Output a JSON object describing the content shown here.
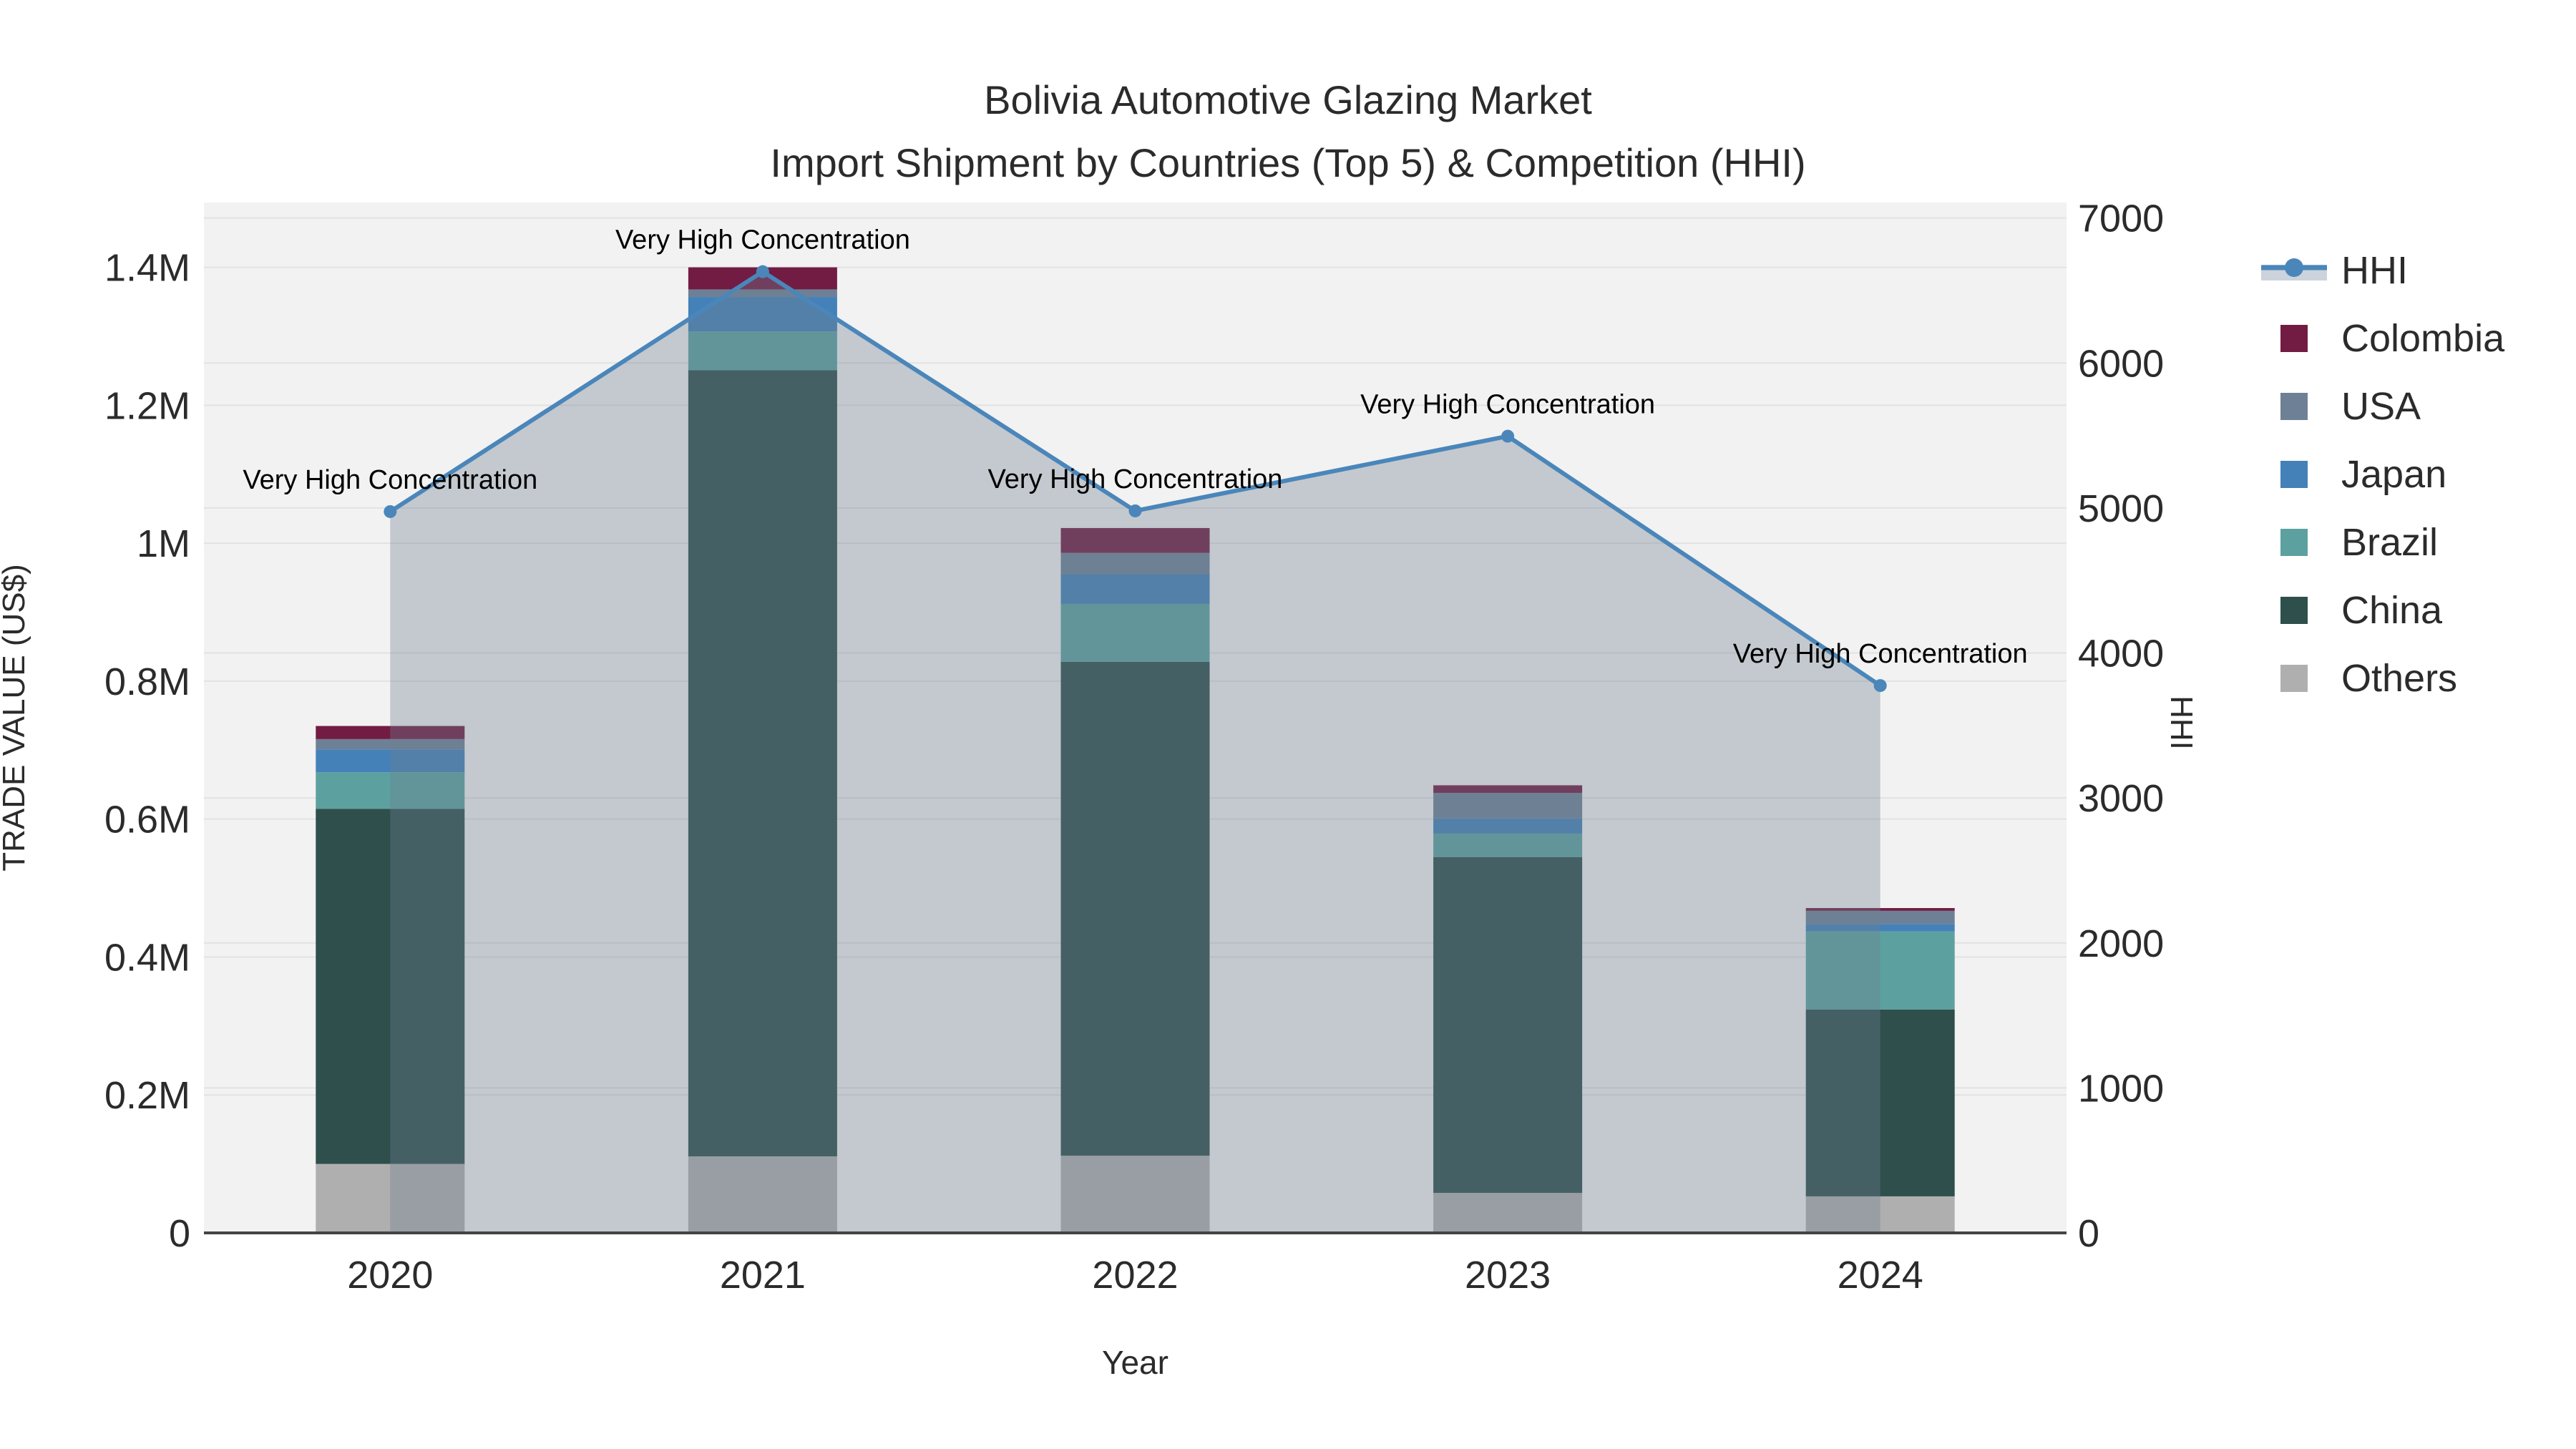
{
  "title": {
    "line1": "Bolivia Automotive Glazing Market",
    "line2": "Import Shipment by Countries (Top 5) & Competition (HHI)"
  },
  "chart_data": {
    "type": "bar+line",
    "title": "Bolivia Automotive Glazing Market Import Shipment by Countries (Top 5) & Competition (HHI)",
    "xlabel": "Year",
    "ylabel_left": "TRADE VALUE (US$)",
    "ylabel_right": "HHI",
    "categories": [
      "2020",
      "2021",
      "2022",
      "2023",
      "2024"
    ],
    "series": [
      {
        "name": "Others",
        "color": "#AFAFAF",
        "values": [
          100000,
          111000,
          112000,
          58000,
          53000
        ]
      },
      {
        "name": "China",
        "color": "#2E4F4B",
        "values": [
          515000,
          1140000,
          716000,
          487000,
          271000
        ]
      },
      {
        "name": "Brazil",
        "color": "#5CA1A0",
        "values": [
          53000,
          56000,
          84000,
          34000,
          113000
        ]
      },
      {
        "name": "Japan",
        "color": "#4481B8",
        "values": [
          33000,
          50000,
          43000,
          22000,
          11000
        ]
      },
      {
        "name": "USA",
        "color": "#6E8095",
        "values": [
          15000,
          11000,
          31000,
          37000,
          19000
        ]
      },
      {
        "name": "Colombia",
        "color": "#721C43",
        "values": [
          19000,
          32000,
          36000,
          11000,
          4000
        ]
      }
    ],
    "bar_totals": [
      735000,
      1400000,
      1022000,
      649000,
      471000
    ],
    "line_series": {
      "name": "HHI",
      "color": "#4A86BA",
      "area_fill": "rgba(112,128,144,0.36)",
      "legend_band_color": "#CCD3DC",
      "values": [
        4975,
        6630,
        4980,
        5495,
        3775
      ]
    },
    "annotations": [
      "Very High Concentration",
      "Very High Concentration",
      "Very High Concentration",
      "Very High Concentration",
      "Very High Concentration"
    ],
    "axes": {
      "left": {
        "max": 1494000,
        "ticks": [
          {
            "v": 0,
            "label": "0"
          },
          {
            "v": 200000,
            "label": "0.2M"
          },
          {
            "v": 400000,
            "label": "0.4M"
          },
          {
            "v": 600000,
            "label": "0.6M"
          },
          {
            "v": 800000,
            "label": "0.8M"
          },
          {
            "v": 1000000,
            "label": "1M"
          },
          {
            "v": 1200000,
            "label": "1.2M"
          },
          {
            "v": 1400000,
            "label": "1.4M"
          }
        ]
      },
      "right": {
        "max": 7107,
        "ticks": [
          {
            "v": 0,
            "label": "0"
          },
          {
            "v": 1000,
            "label": "1000"
          },
          {
            "v": 2000,
            "label": "2000"
          },
          {
            "v": 3000,
            "label": "3000"
          },
          {
            "v": 4000,
            "label": "4000"
          },
          {
            "v": 5000,
            "label": "5000"
          },
          {
            "v": 6000,
            "label": "6000"
          },
          {
            "v": 7000,
            "label": "7000"
          }
        ]
      }
    },
    "legend_position": "right",
    "grid": true,
    "plot_bg": "#F2F2F2",
    "grid_color": "#E2E2E2",
    "axis_line_color": "#444444",
    "text_color": "#2B2B2B",
    "legend": [
      {
        "name": "HHI",
        "type": "line"
      },
      {
        "name": "Colombia",
        "type": "swatch",
        "color": "#721C43"
      },
      {
        "name": "USA",
        "type": "swatch",
        "color": "#6E8095"
      },
      {
        "name": "Japan",
        "type": "swatch",
        "color": "#4481B8"
      },
      {
        "name": "Brazil",
        "type": "swatch",
        "color": "#5CA1A0"
      },
      {
        "name": "China",
        "type": "swatch",
        "color": "#2E4F4B"
      },
      {
        "name": "Others",
        "type": "swatch",
        "color": "#AFAFAF"
      }
    ]
  }
}
